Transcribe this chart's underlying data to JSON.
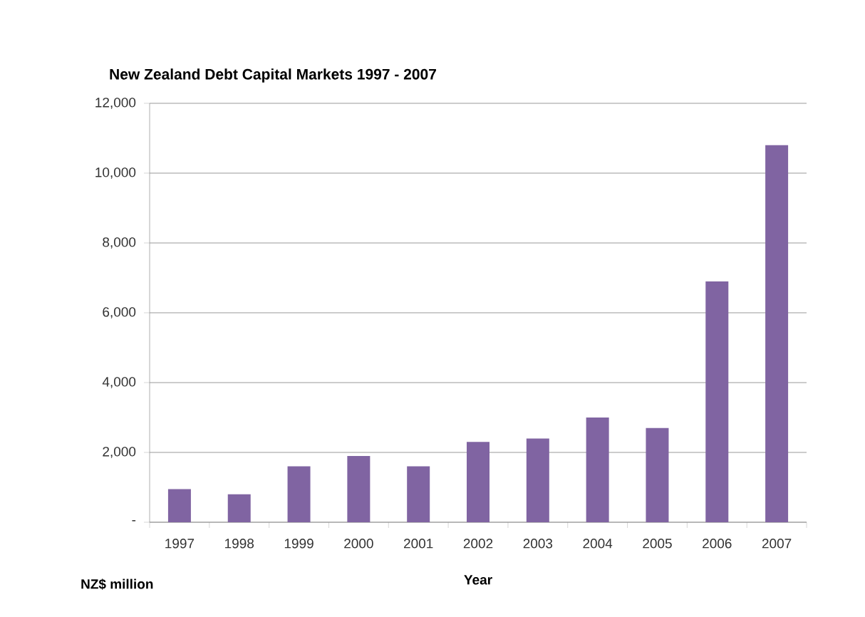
{
  "chart_data": {
    "type": "bar",
    "title": "New Zealand Debt Capital Markets 1997 - 2007",
    "xlabel": "Year",
    "annotations": [
      "NZ$ million"
    ],
    "categories": [
      "1997",
      "1998",
      "1999",
      "2000",
      "2001",
      "2002",
      "2003",
      "2004",
      "2005",
      "2006",
      "2007"
    ],
    "values": [
      950,
      800,
      1600,
      1900,
      1600,
      2300,
      2400,
      3000,
      2700,
      6900,
      10800
    ],
    "color": "#8064a2",
    "ylim": [
      0,
      12000
    ],
    "yticks": [
      {
        "value": 0,
        "label": "-"
      },
      {
        "value": 2000,
        "label": "2,000"
      },
      {
        "value": 4000,
        "label": "4,000"
      },
      {
        "value": 6000,
        "label": "6,000"
      },
      {
        "value": 8000,
        "label": "8,000"
      },
      {
        "value": 10000,
        "label": "10,000"
      },
      {
        "value": 12000,
        "label": "12,000"
      }
    ],
    "grid": "y"
  }
}
